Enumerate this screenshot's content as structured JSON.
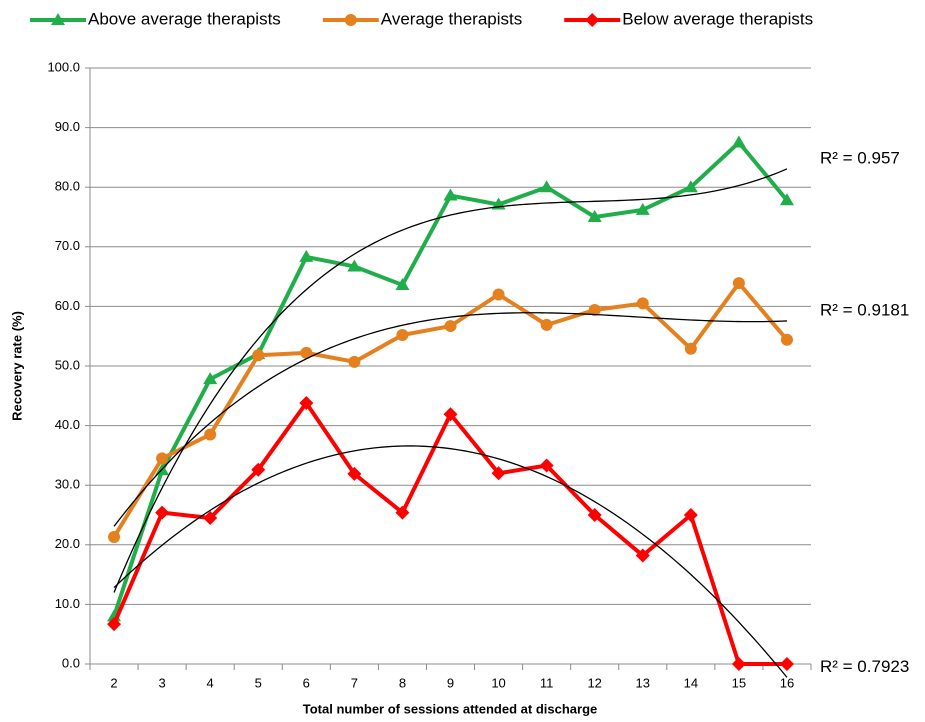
{
  "chart_data": {
    "type": "line",
    "categories": [
      "2",
      "3",
      "4",
      "5",
      "6",
      "7",
      "8",
      "9",
      "10",
      "11",
      "12",
      "13",
      "14",
      "15",
      "16"
    ],
    "x_label": "Total number of sessions attended at discharge",
    "y_label": "Recovery rate (%)",
    "ylim": [
      0,
      100
    ],
    "yticks": [
      {
        "value": 0,
        "label": "0.0"
      },
      {
        "value": 10,
        "label": "10.0"
      },
      {
        "value": 20,
        "label": "20.0"
      },
      {
        "value": 30,
        "label": "30.0"
      },
      {
        "value": 40,
        "label": "40.0"
      },
      {
        "value": 50,
        "label": "50.0"
      },
      {
        "value": 60,
        "label": "60.0"
      },
      {
        "value": 70,
        "label": "70.0"
      },
      {
        "value": 80,
        "label": "80.0"
      },
      {
        "value": 90,
        "label": "90.0"
      },
      {
        "value": 100,
        "label": "100.0"
      }
    ],
    "grid": true,
    "legend": "top",
    "series": [
      {
        "name": "Above average therapists",
        "color": "#1fae4a",
        "marker": "triangle",
        "trendline_order": 3,
        "r_squared": "R² = 0.957",
        "values": [
          8.0,
          32.5,
          47.8,
          52.0,
          68.3,
          66.7,
          63.6,
          78.6,
          77.1,
          80.0,
          75.0,
          76.2,
          80.0,
          87.5,
          77.8
        ]
      },
      {
        "name": "Average therapists",
        "color": "#e5801f",
        "marker": "circle",
        "trendline_order": 3,
        "r_squared": "R² = 0.9181",
        "values": [
          21.3,
          34.5,
          38.5,
          51.8,
          52.2,
          50.7,
          55.2,
          56.7,
          62.0,
          56.9,
          59.4,
          60.5,
          52.9,
          63.9,
          54.4
        ]
      },
      {
        "name": "Below average therapists",
        "color": "#ff0000",
        "marker": "diamond",
        "trendline_order": 2,
        "r_squared": "R² = 0.7923",
        "values": [
          6.7,
          25.4,
          24.5,
          32.6,
          43.8,
          31.9,
          25.4,
          41.9,
          32.0,
          33.3,
          25.0,
          18.2,
          25.0,
          0,
          0
        ]
      }
    ]
  }
}
